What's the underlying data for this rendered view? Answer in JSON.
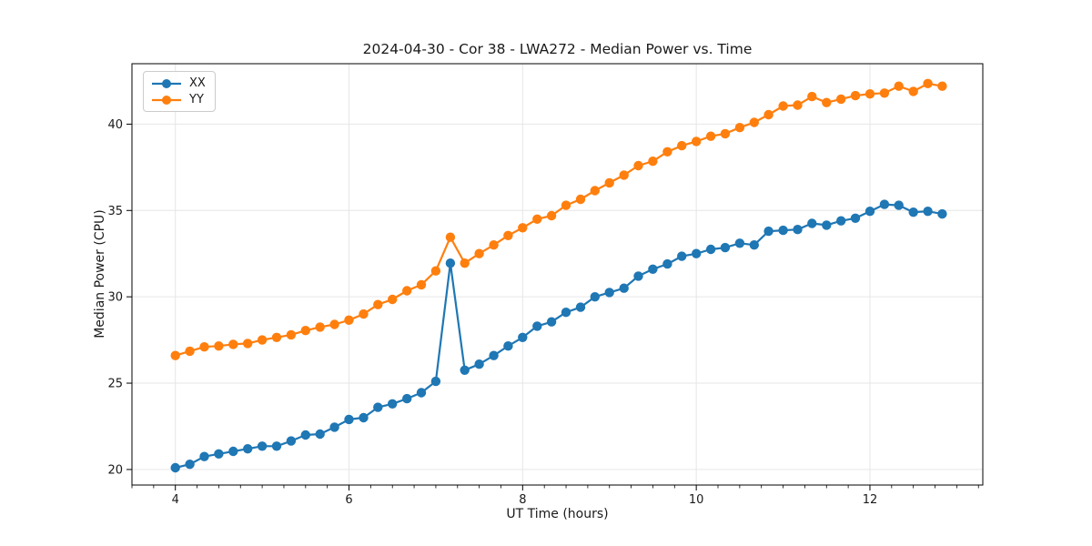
{
  "chart_data": {
    "type": "line",
    "title": "2024-04-30 - Cor 38 - LWA272 - Median Power vs. Time",
    "xlabel": "UT Time (hours)",
    "ylabel": "Median Power (CPU)",
    "xlim": [
      3.5,
      13.3
    ],
    "ylim": [
      19.1,
      43.5
    ],
    "x_ticks": [
      4,
      6,
      8,
      10,
      12
    ],
    "x_minor_step": 0.25,
    "y_ticks": [
      20,
      25,
      30,
      35,
      40
    ],
    "grid": true,
    "legend_position": "upper left",
    "x": [
      4.0,
      4.167,
      4.333,
      4.5,
      4.667,
      4.833,
      5.0,
      5.167,
      5.333,
      5.5,
      5.667,
      5.833,
      6.0,
      6.167,
      6.333,
      6.5,
      6.667,
      6.833,
      7.0,
      7.167,
      7.333,
      7.5,
      7.667,
      7.833,
      8.0,
      8.167,
      8.333,
      8.5,
      8.667,
      8.833,
      9.0,
      9.167,
      9.333,
      9.5,
      9.667,
      9.833,
      10.0,
      10.167,
      10.333,
      10.5,
      10.667,
      10.833,
      11.0,
      11.167,
      11.333,
      11.5,
      11.667,
      11.833,
      12.0,
      12.167,
      12.333,
      12.5,
      12.667,
      12.833
    ],
    "series": [
      {
        "name": "XX",
        "color": "#1f77b4",
        "values": [
          20.1,
          20.3,
          20.75,
          20.9,
          21.05,
          21.2,
          21.35,
          21.35,
          21.65,
          22.0,
          22.05,
          22.45,
          22.9,
          23.0,
          23.6,
          23.8,
          24.1,
          24.45,
          25.1,
          31.95,
          25.75,
          26.1,
          26.6,
          27.15,
          27.65,
          28.3,
          28.55,
          29.1,
          29.4,
          30.0,
          30.25,
          30.5,
          31.2,
          31.6,
          31.9,
          32.35,
          32.5,
          32.75,
          32.85,
          33.1,
          33.0,
          33.8,
          33.85,
          33.9,
          34.25,
          34.15,
          34.4,
          34.55,
          34.95,
          35.35,
          35.3,
          34.9,
          34.95,
          34.8
        ]
      },
      {
        "name": "YY",
        "color": "#ff7f0e",
        "values": [
          26.6,
          26.85,
          27.1,
          27.15,
          27.25,
          27.3,
          27.5,
          27.65,
          27.8,
          28.05,
          28.25,
          28.4,
          28.65,
          29.0,
          29.55,
          29.85,
          30.35,
          30.7,
          31.5,
          33.45,
          31.95,
          32.5,
          33.0,
          33.55,
          34.0,
          34.5,
          34.7,
          35.3,
          35.65,
          36.15,
          36.6,
          37.05,
          37.6,
          37.85,
          38.4,
          38.75,
          39.0,
          39.3,
          39.45,
          39.8,
          40.1,
          40.55,
          41.05,
          41.1,
          41.6,
          41.25,
          41.45,
          41.65,
          41.75,
          41.8,
          42.2,
          41.9,
          42.35,
          42.2
        ]
      }
    ],
    "annotation_spike_time": 7.167
  },
  "style": {
    "grid_color": "#e6e6e6",
    "spine_color": "#000000",
    "text_color": "#1a1a1a",
    "background": "#ffffff"
  }
}
